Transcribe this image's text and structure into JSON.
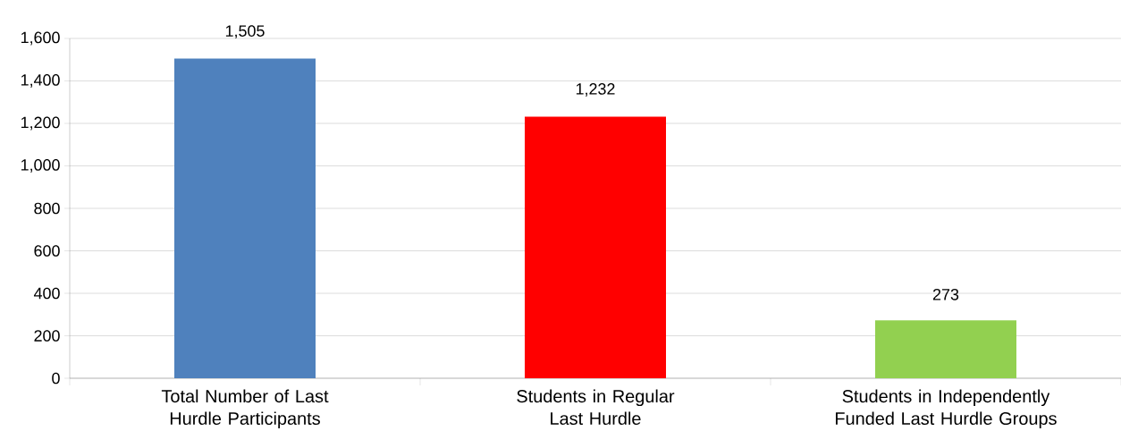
{
  "chart_data": {
    "type": "bar",
    "categories": [
      "Total Number of Last Hurdle Participants",
      "Students in Regular Last Hurdle",
      "Students in Independently Funded Last Hurdle Groups"
    ],
    "values": [
      1505,
      1232,
      273
    ],
    "colors": [
      "#4f81bd",
      "#ff0000",
      "#92d050"
    ],
    "ylim": [
      0,
      1600
    ],
    "yticks": [
      0,
      {
        "value": 200,
        "label": "200"
      },
      {
        "value": 400,
        "label": "400"
      },
      {
        "value": 600,
        "label": "600"
      },
      {
        "value": 800,
        "label": "800"
      },
      {
        "value": 1000,
        "label": "1,000"
      },
      {
        "value": 1200,
        "label": "1,200"
      },
      {
        "value": 1400,
        "label": "1,400"
      },
      {
        "value": 1600,
        "label": "1,600"
      }
    ],
    "value_labels": [
      "1,505",
      "1,232",
      "273"
    ],
    "grid": "y"
  }
}
